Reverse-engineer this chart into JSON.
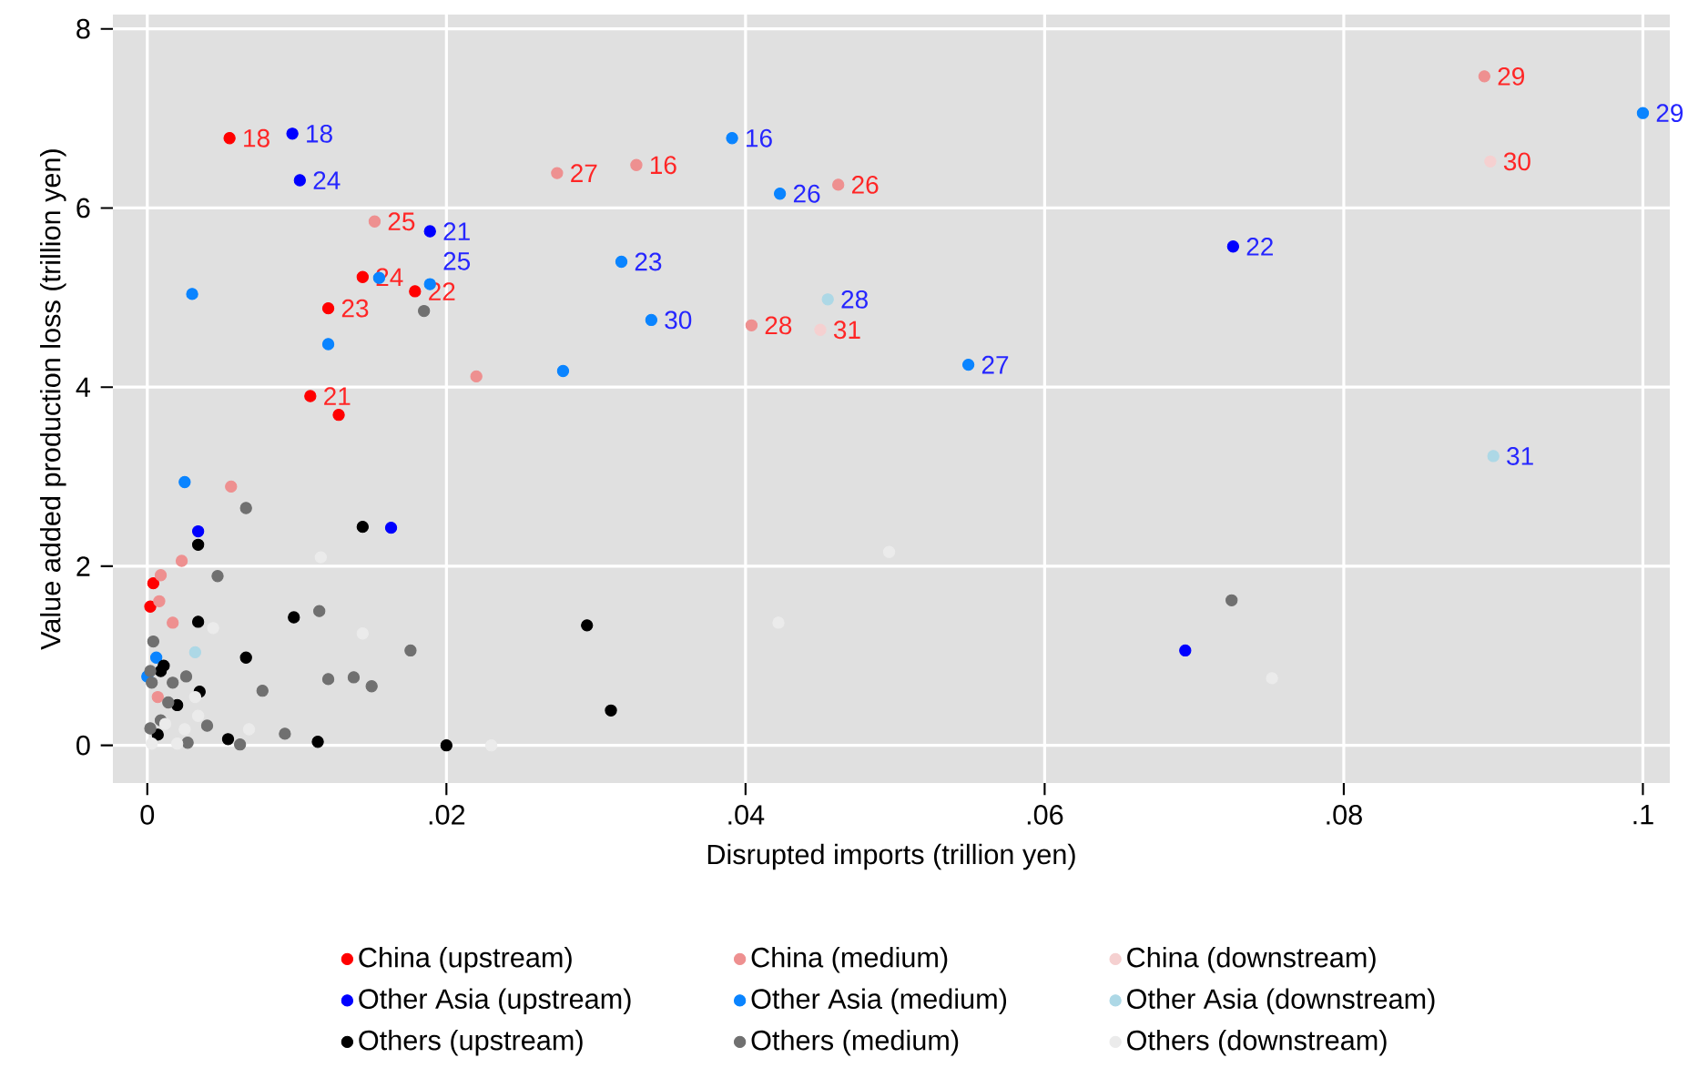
{
  "chart_data": {
    "type": "scatter",
    "xlabel": "Disrupted imports (trillion yen)",
    "ylabel": "Value added production loss (trillion yen)",
    "xlim": [
      -0.0023,
      0.1018
    ],
    "ylim": [
      -0.42,
      8.16
    ],
    "xticks": [
      0,
      {
        "value": 0.02,
        "label": ".02"
      },
      {
        "value": 0.04,
        "label": ".04"
      },
      {
        "value": 0.06,
        "label": ".06"
      },
      {
        "value": 0.08,
        "label": ".08"
      },
      {
        "value": 0.1,
        "label": ".1"
      }
    ],
    "yticks": [
      0,
      2,
      4,
      6,
      8
    ],
    "grid": true,
    "legend": "bottom",
    "marker": "circle",
    "series": [
      {
        "name": "China (upstream)",
        "color": "#ff0000",
        "x": [
          0.0055,
          0.0144,
          0.0179,
          0.0121,
          0.0109,
          0.0128,
          0.0004,
          0.0002
        ],
        "values": [
          6.78,
          5.23,
          5.07,
          4.88,
          3.9,
          3.69,
          1.81,
          1.55
        ]
      },
      {
        "name": "China (medium)",
        "color": "#ee9090",
        "x": [
          0.0152,
          0.0274,
          0.0327,
          0.0462,
          0.0404,
          0.0894,
          0.022,
          0.0056,
          0.0009,
          0.0023,
          0.0008,
          0.0017,
          0.0007
        ],
        "values": [
          5.85,
          6.39,
          6.48,
          6.26,
          4.69,
          7.47,
          4.12,
          2.89,
          1.9,
          2.06,
          1.61,
          1.37,
          0.54
        ]
      },
      {
        "name": "China (downstream)",
        "color": "#f5d0d0",
        "x": [
          0.0898,
          0.045
        ],
        "values": [
          6.52,
          4.64
        ]
      },
      {
        "name": "Other Asia (upstream)",
        "color": "#0000ff",
        "x": [
          0.0097,
          0.0102,
          0.0189,
          0.0726,
          0.0034,
          0.0163,
          0.0694
        ],
        "values": [
          6.83,
          6.31,
          5.74,
          5.57,
          2.39,
          2.43,
          1.06
        ]
      },
      {
        "name": "Other Asia (medium)",
        "color": "#0a84ff",
        "x": [
          0.0391,
          0.0423,
          0.0317,
          0.0337,
          0.0549,
          0.1,
          0.0189,
          0.0155,
          0.003,
          0.0121,
          0.0278,
          0.0025,
          0.0006,
          0.0
        ],
        "values": [
          6.78,
          6.16,
          5.4,
          4.75,
          4.25,
          7.06,
          5.15,
          5.22,
          5.04,
          4.48,
          4.18,
          2.94,
          0.98,
          0.77
        ]
      },
      {
        "name": "Other Asia (downstream)",
        "color": "#add8e6",
        "x": [
          0.0455,
          0.09,
          0.0032
        ],
        "values": [
          4.98,
          3.23,
          1.04
        ]
      },
      {
        "name": "Others (upstream)",
        "color": "#000000",
        "x": [
          0.0034,
          0.0144,
          0.0034,
          0.0098,
          0.0066,
          0.0294,
          0.031,
          0.0011,
          0.0009,
          0.0035,
          0.002,
          0.0054,
          0.0114,
          0.02,
          0.0007
        ],
        "values": [
          2.24,
          2.44,
          1.38,
          1.43,
          0.98,
          1.34,
          0.39,
          0.89,
          0.83,
          0.6,
          0.45,
          0.07,
          0.04,
          0.0,
          0.12
        ]
      },
      {
        "name": "Others (medium)",
        "color": "#707070",
        "x": [
          0.0185,
          0.0725,
          0.0066,
          0.0047,
          0.0115,
          0.0176,
          0.0004,
          0.0121,
          0.0138,
          0.015,
          0.0077,
          0.0026,
          0.0017,
          0.0002,
          0.0003,
          0.0014,
          0.0009,
          0.004,
          0.0002,
          0.0092,
          0.0027,
          0.0062
        ],
        "values": [
          4.85,
          1.62,
          2.65,
          1.89,
          1.5,
          1.06,
          1.16,
          0.74,
          0.76,
          0.66,
          0.61,
          0.77,
          0.7,
          0.83,
          0.7,
          0.48,
          0.28,
          0.22,
          0.19,
          0.13,
          0.03,
          0.01
        ]
      },
      {
        "name": "Others (downstream)",
        "color": "#ebebeb",
        "x": [
          0.0116,
          0.0144,
          0.0044,
          0.023,
          0.0496,
          0.0422,
          0.0752,
          0.0032,
          0.0034,
          0.0068,
          0.0025,
          0.0012,
          0.002,
          0.0003
        ],
        "values": [
          2.1,
          1.25,
          1.31,
          0.0,
          2.16,
          1.37,
          0.75,
          0.54,
          0.33,
          0.18,
          0.18,
          0.24,
          0.02,
          0.02
        ]
      }
    ],
    "annotations": [
      {
        "text": "18",
        "x": 0.0055,
        "y": 6.78
      },
      {
        "text": "24",
        "x": 0.0144,
        "y": 5.23
      },
      {
        "text": "22",
        "x": 0.0179,
        "y": 5.07
      },
      {
        "text": "23",
        "x": 0.0121,
        "y": 4.88
      },
      {
        "text": "21",
        "x": 0.0109,
        "y": 3.9
      },
      {
        "text": "25",
        "x": 0.0152,
        "y": 5.85
      },
      {
        "text": "27",
        "x": 0.0274,
        "y": 6.39
      },
      {
        "text": "16",
        "x": 0.0327,
        "y": 6.48
      },
      {
        "text": "26",
        "x": 0.0462,
        "y": 6.26
      },
      {
        "text": "28",
        "x": 0.0404,
        "y": 4.69
      },
      {
        "text": "29",
        "x": 0.0894,
        "y": 7.47
      },
      {
        "text": "30",
        "x": 0.0898,
        "y": 6.52
      },
      {
        "text": "31",
        "x": 0.045,
        "y": 4.64
      },
      {
        "text": "18",
        "x": 0.0097,
        "y": 6.83
      },
      {
        "text": "24",
        "x": 0.0102,
        "y": 6.31
      },
      {
        "text": "21",
        "x": 0.0189,
        "y": 5.74
      },
      {
        "text": "22",
        "x": 0.0726,
        "y": 5.57
      },
      {
        "text": "16",
        "x": 0.0391,
        "y": 6.78
      },
      {
        "text": "26",
        "x": 0.0423,
        "y": 6.16
      },
      {
        "text": "23",
        "x": 0.0317,
        "y": 5.4
      },
      {
        "text": "30",
        "x": 0.0337,
        "y": 4.75
      },
      {
        "text": "27",
        "x": 0.0549,
        "y": 4.25
      },
      {
        "text": "29",
        "x": 0.1,
        "y": 7.06
      },
      {
        "text": "25",
        "x": 0.0189,
        "y": 5.15
      },
      {
        "text": "28",
        "x": 0.0455,
        "y": 4.98
      },
      {
        "text": "31",
        "x": 0.09,
        "y": 3.23
      }
    ]
  }
}
